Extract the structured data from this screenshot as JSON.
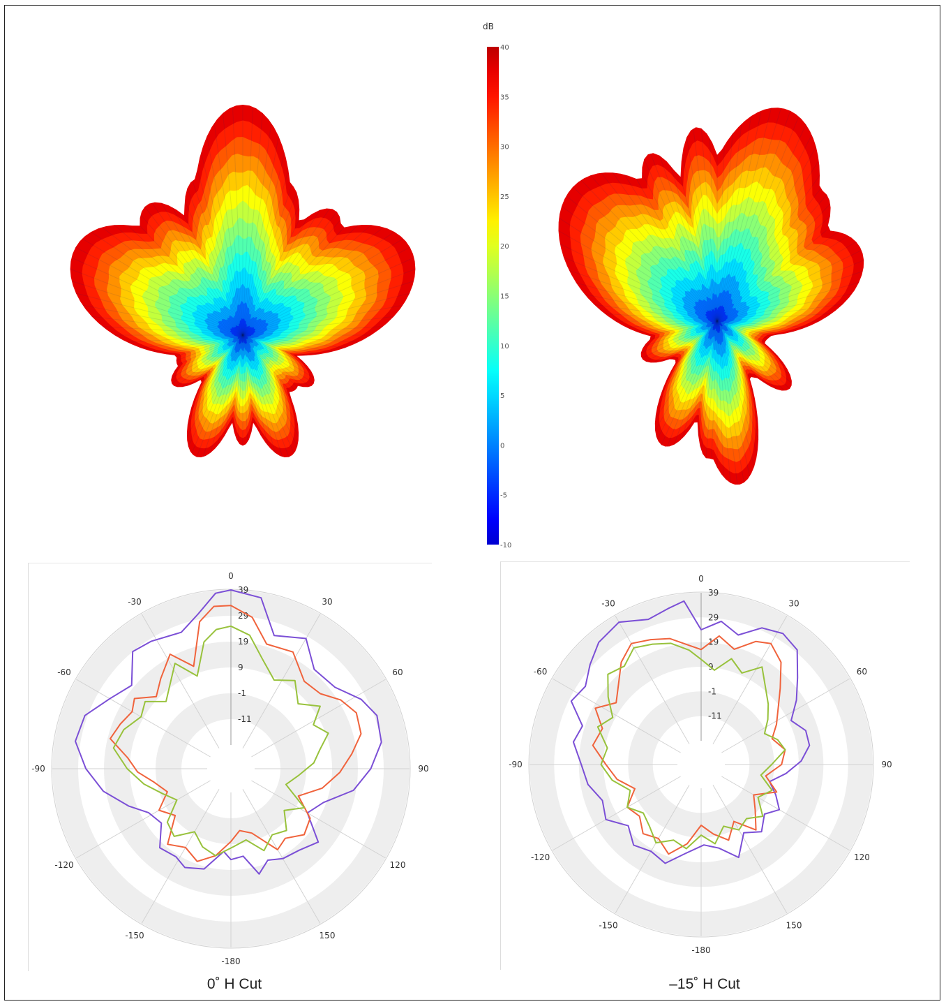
{
  "colors": {
    "trace_purple": "#7b4fd6",
    "trace_orange": "#f0633c",
    "trace_green": "#98c23c",
    "ring_gray": "#eeeeee",
    "grid_line": "#d2d2d2"
  },
  "colorbar": {
    "unit": "dB",
    "min": -10,
    "max": 40,
    "ticks": [
      "40",
      "35",
      "30",
      "25",
      "20",
      "15",
      "10",
      "5",
      "0",
      "-5",
      "-10"
    ]
  },
  "patterns": [
    {
      "lobes": [
        [
          0,
          1.0,
          24
        ],
        [
          -20,
          0.72,
          16
        ],
        [
          20,
          0.7,
          16
        ],
        [
          -42,
          0.75,
          18
        ],
        [
          42,
          0.72,
          16
        ],
        [
          -68,
          0.94,
          26
        ],
        [
          68,
          0.94,
          26
        ],
        [
          -155,
          0.58,
          18
        ],
        [
          155,
          0.58,
          18
        ],
        [
          180,
          0.48,
          12
        ],
        [
          -120,
          0.42,
          14
        ],
        [
          120,
          0.42,
          14
        ]
      ]
    },
    {
      "lobes": [
        [
          -58,
          1.0,
          30
        ],
        [
          25,
          1.0,
          30
        ],
        [
          -28,
          0.82,
          14
        ],
        [
          -8,
          0.85,
          14
        ],
        [
          6,
          0.76,
          12
        ],
        [
          48,
          0.82,
          18
        ],
        [
          70,
          0.86,
          22
        ],
        [
          -150,
          0.62,
          18
        ],
        [
          170,
          0.72,
          20
        ],
        [
          -175,
          0.6,
          12
        ],
        [
          125,
          0.5,
          14
        ],
        [
          -110,
          0.45,
          14
        ]
      ]
    }
  ],
  "chart_data": [
    {
      "type": "polar-line",
      "title": "0˚ H Cut",
      "angle_ticks": [
        "0",
        "30",
        "60",
        "90",
        "120",
        "150",
        "-180",
        "-150",
        "-120",
        "-90",
        "-60",
        "-30"
      ],
      "radial_ticks": [
        "39",
        "29",
        "19",
        "9",
        "-1",
        "-11"
      ],
      "radial_range": [
        -21,
        39
      ],
      "series": [
        {
          "color": "#7b4fd6",
          "points": [
            [
              0,
              39
            ],
            [
              10,
              37
            ],
            [
              18,
              24
            ],
            [
              30,
              28
            ],
            [
              40,
              20
            ],
            [
              52,
              21
            ],
            [
              62,
              27
            ],
            [
              70,
              30
            ],
            [
              80,
              29
            ],
            [
              90,
              24
            ],
            [
              100,
              18
            ],
            [
              110,
              8
            ],
            [
              120,
              4
            ],
            [
              130,
              14
            ],
            [
              140,
              11
            ],
            [
              150,
              10
            ],
            [
              158,
              8
            ],
            [
              165,
              12
            ],
            [
              172,
              4
            ],
            [
              180,
              5
            ],
            [
              -175,
              2
            ],
            [
              -165,
              10
            ],
            [
              -155,
              12
            ],
            [
              -148,
              10
            ],
            [
              -138,
              11
            ],
            [
              -128,
              4
            ],
            [
              -118,
              6
            ],
            [
              -110,
              12
            ],
            [
              -100,
              20
            ],
            [
              -90,
              26
            ],
            [
              -80,
              31
            ],
            [
              -70,
              30
            ],
            [
              -60,
              24
            ],
            [
              -50,
              20
            ],
            [
              -40,
              29
            ],
            [
              -32,
              28
            ],
            [
              -20,
              26
            ],
            [
              -12,
              31
            ],
            [
              -5,
              38
            ]
          ]
        },
        {
          "color": "#f0633c",
          "points": [
            [
              0,
              33
            ],
            [
              8,
              29
            ],
            [
              16,
              20
            ],
            [
              28,
              21
            ],
            [
              40,
              14
            ],
            [
              50,
              15
            ],
            [
              58,
              20
            ],
            [
              66,
              23
            ],
            [
              75,
              22
            ],
            [
              83,
              17
            ],
            [
              92,
              12
            ],
            [
              102,
              6
            ],
            [
              112,
              -2
            ],
            [
              122,
              6
            ],
            [
              132,
              8
            ],
            [
              142,
              4
            ],
            [
              150,
              6
            ],
            [
              162,
              -4
            ],
            [
              172,
              -6
            ],
            [
              180,
              -2
            ],
            [
              -170,
              4
            ],
            [
              -160,
              8
            ],
            [
              -150,
              5
            ],
            [
              -140,
              8
            ],
            [
              -130,
              -2
            ],
            [
              -120,
              2
            ],
            [
              -110,
              -4
            ],
            [
              -100,
              0
            ],
            [
              -92,
              6
            ],
            [
              -84,
              10
            ],
            [
              -76,
              18
            ],
            [
              -68,
              16
            ],
            [
              -60,
              14
            ],
            [
              -54,
              16
            ],
            [
              -46,
              10
            ],
            [
              -38,
              14
            ],
            [
              -28,
              20
            ],
            [
              -20,
              12
            ],
            [
              -12,
              28
            ],
            [
              -6,
              33
            ]
          ]
        },
        {
          "color": "#98c23c",
          "points": [
            [
              0,
              25
            ],
            [
              8,
              22
            ],
            [
              16,
              14
            ],
            [
              26,
              8
            ],
            [
              36,
              12
            ],
            [
              46,
              6
            ],
            [
              55,
              12
            ],
            [
              62,
              6
            ],
            [
              70,
              10
            ],
            [
              78,
              5
            ],
            [
              86,
              2
            ],
            [
              96,
              -4
            ],
            [
              106,
              -8
            ],
            [
              118,
              2
            ],
            [
              128,
              -4
            ],
            [
              138,
              2
            ],
            [
              148,
              0
            ],
            [
              158,
              4
            ],
            [
              168,
              -2
            ],
            [
              178,
              0
            ],
            [
              -170,
              4
            ],
            [
              -160,
              2
            ],
            [
              -150,
              -2
            ],
            [
              -140,
              4
            ],
            [
              -130,
              2
            ],
            [
              -120,
              -6
            ],
            [
              -110,
              -2
            ],
            [
              -100,
              4
            ],
            [
              -90,
              10
            ],
            [
              -80,
              16
            ],
            [
              -70,
              14
            ],
            [
              -60,
              10
            ],
            [
              -52,
              12
            ],
            [
              -44,
              6
            ],
            [
              -36,
              10
            ],
            [
              -28,
              16
            ],
            [
              -20,
              8
            ],
            [
              -12,
              20
            ],
            [
              -6,
              24
            ]
          ]
        }
      ]
    },
    {
      "type": "polar-line",
      "title": "–15˚ H Cut",
      "angle_ticks": [
        "0",
        "30",
        "60",
        "90",
        "120",
        "150",
        "-180",
        "-150",
        "-120",
        "-90",
        "-60",
        "-30"
      ],
      "radial_ticks": [
        "39",
        "29",
        "19",
        "9",
        "-1",
        "-11"
      ],
      "radial_range": [
        -21,
        39
      ],
      "series": [
        {
          "color": "#7b4fd6",
          "points": [
            [
              0,
              24
            ],
            [
              8,
              28
            ],
            [
              16,
              24
            ],
            [
              24,
              30
            ],
            [
              32,
              32
            ],
            [
              40,
              30
            ],
            [
              48,
              22
            ],
            [
              56,
              16
            ],
            [
              64,
              10
            ],
            [
              72,
              14
            ],
            [
              80,
              14
            ],
            [
              88,
              10
            ],
            [
              96,
              4
            ],
            [
              104,
              -2
            ],
            [
              112,
              2
            ],
            [
              120,
              6
            ],
            [
              128,
              2
            ],
            [
              138,
              6
            ],
            [
              148,
              2
            ],
            [
              158,
              10
            ],
            [
              168,
              4
            ],
            [
              178,
              2
            ],
            [
              -170,
              6
            ],
            [
              -160,
              12
            ],
            [
              -150,
              10
            ],
            [
              -140,
              12
            ],
            [
              -130,
              8
            ],
            [
              -120,
              14
            ],
            [
              -110,
              12
            ],
            [
              -100,
              16
            ],
            [
              -90,
              18
            ],
            [
              -80,
              22
            ],
            [
              -72,
              20
            ],
            [
              -64,
              28
            ],
            [
              -56,
              26
            ],
            [
              -48,
              30
            ],
            [
              -40,
              34
            ],
            [
              -30,
              36
            ],
            [
              -20,
              32
            ],
            [
              -12,
              34
            ],
            [
              -6,
              36
            ]
          ]
        },
        {
          "color": "#f0633c",
          "points": [
            [
              0,
              16
            ],
            [
              8,
              22
            ],
            [
              16,
              18
            ],
            [
              24,
              24
            ],
            [
              30,
              26
            ],
            [
              38,
              22
            ],
            [
              46,
              14
            ],
            [
              54,
              8
            ],
            [
              62,
              4
            ],
            [
              70,
              0
            ],
            [
              80,
              4
            ],
            [
              90,
              2
            ],
            [
              100,
              -4
            ],
            [
              110,
              2
            ],
            [
              120,
              -6
            ],
            [
              130,
              -2
            ],
            [
              140,
              4
            ],
            [
              150,
              -4
            ],
            [
              160,
              2
            ],
            [
              170,
              -2
            ],
            [
              180,
              -6
            ],
            [
              -170,
              2
            ],
            [
              -160,
              8
            ],
            [
              -150,
              4
            ],
            [
              -140,
              6
            ],
            [
              -130,
              2
            ],
            [
              -120,
              4
            ],
            [
              -110,
              -2
            ],
            [
              -100,
              4
            ],
            [
              -90,
              8
            ],
            [
              -80,
              14
            ],
            [
              -70,
              12
            ],
            [
              -62,
              18
            ],
            [
              -54,
              12
            ],
            [
              -46,
              16
            ],
            [
              -38,
              22
            ],
            [
              -30,
              26
            ],
            [
              -22,
              24
            ],
            [
              -14,
              22
            ],
            [
              -6,
              18
            ]
          ]
        },
        {
          "color": "#98c23c",
          "points": [
            [
              0,
              12
            ],
            [
              8,
              8
            ],
            [
              16,
              14
            ],
            [
              24,
              10
            ],
            [
              32,
              16
            ],
            [
              40,
              10
            ],
            [
              48,
              6
            ],
            [
              56,
              2
            ],
            [
              64,
              -2
            ],
            [
              72,
              2
            ],
            [
              80,
              4
            ],
            [
              90,
              -2
            ],
            [
              100,
              -6
            ],
            [
              110,
              0
            ],
            [
              120,
              -4
            ],
            [
              130,
              2
            ],
            [
              140,
              -2
            ],
            [
              150,
              0
            ],
            [
              160,
              -4
            ],
            [
              170,
              2
            ],
            [
              180,
              -2
            ],
            [
              -170,
              4
            ],
            [
              -160,
              2
            ],
            [
              -150,
              6
            ],
            [
              -140,
              2
            ],
            [
              -130,
              0
            ],
            [
              -120,
              4
            ],
            [
              -110,
              0
            ],
            [
              -100,
              6
            ],
            [
              -90,
              10
            ],
            [
              -80,
              8
            ],
            [
              -70,
              14
            ],
            [
              -62,
              10
            ],
            [
              -54,
              16
            ],
            [
              -46,
              22
            ],
            [
              -38,
              20
            ],
            [
              -30,
              24
            ],
            [
              -22,
              22
            ],
            [
              -14,
              20
            ],
            [
              -6,
              16
            ]
          ]
        }
      ]
    }
  ]
}
